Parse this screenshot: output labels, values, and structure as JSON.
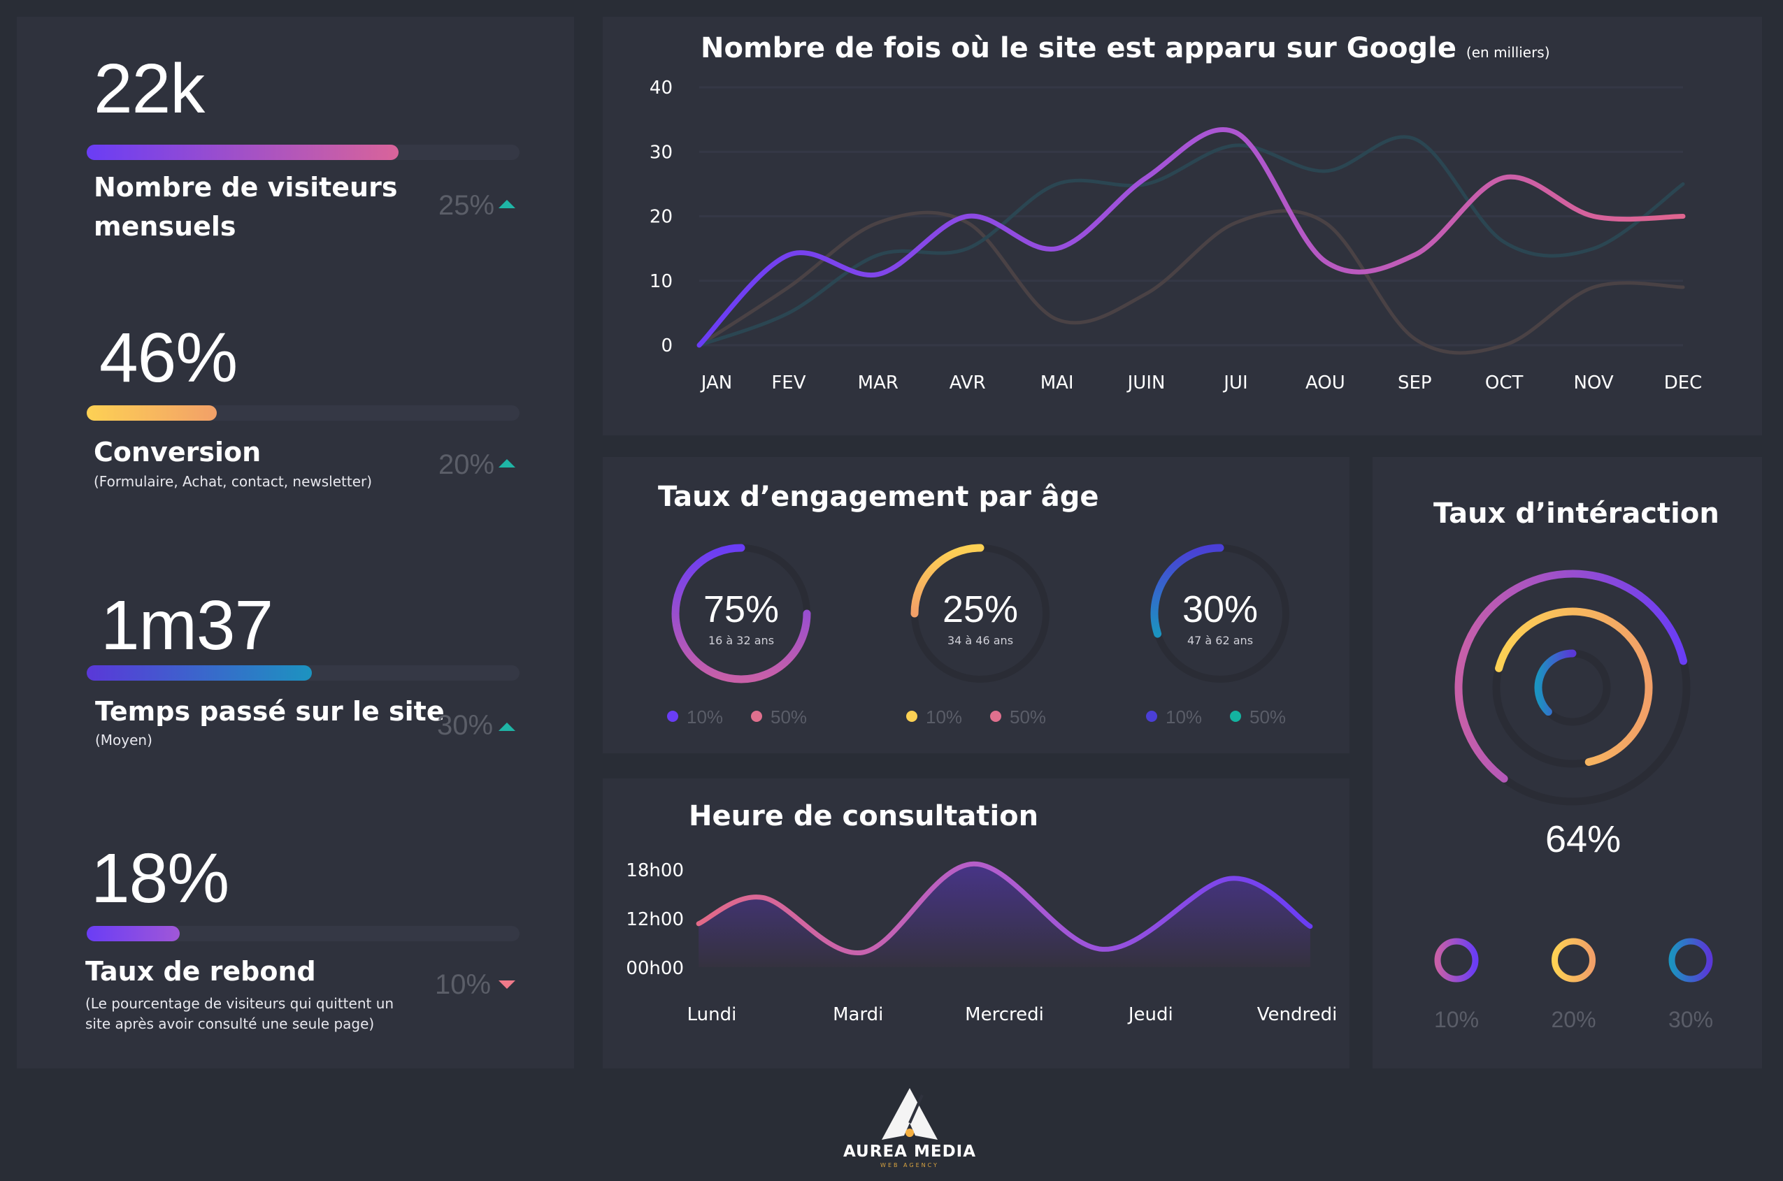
{
  "metrics": [
    {
      "value": "22k",
      "label_line1": "Nombre de visiteurs",
      "label_line2": "mensuels",
      "change": "25%",
      "trend": "up",
      "progress": 0.72,
      "colors": [
        "#6a3df5",
        "#d9649a"
      ]
    },
    {
      "value": "46%",
      "label": "Conversion",
      "sublabel": "(Formulaire, Achat, contact, newsletter)",
      "change": "20%",
      "trend": "up",
      "progress": 0.3,
      "colors": [
        "#fdd154",
        "#f2a068"
      ]
    },
    {
      "value": "1m37",
      "label": "Temps passé sur le site",
      "sublabel": "(Moyen)",
      "change": "30%",
      "trend": "up",
      "progress": 0.52,
      "colors": [
        "#5a38d8",
        "#1c93c0"
      ]
    },
    {
      "value": "18%",
      "label": "Taux de rebond",
      "sublabel_line1": "(Le pourcentage de visiteurs qui quittent un",
      "sublabel_line2": "site après avoir consulté une seule page)",
      "change": "10%",
      "trend": "down",
      "progress": 0.215,
      "colors": [
        "#6a3df5",
        "#a057d8"
      ]
    }
  ],
  "trend_colors": {
    "up": "#1fb5a6",
    "down": "#f07a8a"
  },
  "google_chart": {
    "title": "Nombre de fois où le site est apparu sur Google",
    "unit": "(en milliers)",
    "chart_data": {
      "type": "line",
      "categories": [
        "JAN",
        "FEV",
        "MAR",
        "AVR",
        "MAI",
        "JUIN",
        "JUI",
        "AOU",
        "SEP",
        "OCT",
        "NOV",
        "DEC"
      ],
      "yticks": [
        "0",
        "10",
        "20",
        "30",
        "40"
      ],
      "ylim": [
        0,
        40
      ],
      "grid": true,
      "series": [
        {
          "values": [
            0,
            9,
            19,
            19,
            4,
            8,
            19,
            19,
            1,
            0,
            9,
            9
          ],
          "color": "#4a4245"
        },
        {
          "values": [
            0,
            5,
            14,
            15,
            25,
            25,
            31,
            27,
            32,
            16,
            15,
            25
          ],
          "color": "#2b4652"
        },
        {
          "values": [
            0,
            14,
            11,
            20,
            15,
            26,
            33,
            13,
            14,
            26,
            20,
            20
          ],
          "colors": [
            "#6a3df5",
            "#a855d6",
            "#e0658f"
          ]
        }
      ]
    }
  },
  "engagement": {
    "title": "Taux d’engagement par âge",
    "rings": [
      {
        "value": "75%",
        "fraction": 0.75,
        "range": "16 à 32 ans",
        "colors": [
          "#6a3df5",
          "#c860a8"
        ],
        "legend": [
          {
            "label": "10%",
            "color": "#6a3df5"
          },
          {
            "label": "50%",
            "color": "#e0708e"
          }
        ]
      },
      {
        "value": "25%",
        "fraction": 0.25,
        "range": "34 à 46 ans",
        "colors": [
          "#fdd154",
          "#f2a068"
        ],
        "legend": [
          {
            "label": "10%",
            "color": "#fdd154"
          },
          {
            "label": "50%",
            "color": "#e0708e"
          }
        ]
      },
      {
        "value": "30%",
        "fraction": 0.3,
        "range": "47 à 62 ans",
        "colors": [
          "#4b3fd6",
          "#1c93c0"
        ],
        "legend": [
          {
            "label": "10%",
            "color": "#4b3fd6"
          },
          {
            "label": "50%",
            "color": "#14b3a0"
          }
        ]
      }
    ]
  },
  "consultation": {
    "title": "Heure de consultation",
    "chart_data": {
      "type": "area",
      "categories": [
        "Lundi",
        "Mardi",
        "Mercredi",
        "Jeudi",
        "Vendredi"
      ],
      "yticks": [
        "00h00",
        "12h00",
        "18h00"
      ],
      "ylim_hours": [
        0,
        18
      ],
      "points": [
        [
          -0.09,
          8
        ],
        [
          0.35,
          12.8
        ],
        [
          1.03,
          2.7
        ],
        [
          1.79,
          19
        ],
        [
          2.67,
          3.3
        ],
        [
          3.54,
          16.3
        ],
        [
          4.09,
          7.5
        ]
      ],
      "colors": [
        "#e36a88",
        "#b05dd0",
        "#6a3df5"
      ]
    }
  },
  "interaction": {
    "title": "Taux d’intéraction",
    "total": "64%",
    "rings": [
      {
        "label": "10%",
        "fill": 0.61,
        "colors": [
          "#c860a8",
          "#6a3df5"
        ]
      },
      {
        "label": "20%",
        "fill": 0.675,
        "colors": [
          "#fdd154",
          "#f2a068"
        ]
      },
      {
        "label": "30%",
        "fill": 0.375,
        "colors": [
          "#1c93c0",
          "#5a38d8"
        ]
      }
    ]
  },
  "logo": {
    "name": "AUREA MEDIA",
    "tagline": "WEB AGENCY"
  }
}
